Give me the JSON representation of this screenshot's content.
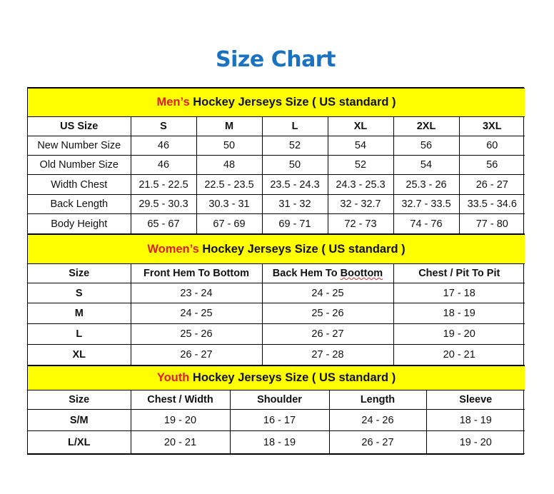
{
  "title": "Size Chart",
  "colors": {
    "title": "#1a72c0",
    "banner": "#ffff00",
    "highlight": "#e0201a"
  },
  "sections": [
    {
      "key": "men",
      "lead": "Men’s",
      "rest": " Hockey Jerseys Size ( US standard )",
      "headers": [
        "US Size",
        "S",
        "M",
        "L",
        "XL",
        "2XL",
        "3XL"
      ],
      "rows": [
        [
          "New Number Size",
          "46",
          "50",
          "52",
          "54",
          "56",
          "60"
        ],
        [
          "Old Number Size",
          "46",
          "48",
          "50",
          "52",
          "54",
          "56"
        ],
        [
          "Width Chest",
          "21.5 - 22.5",
          "22.5 - 23.5",
          "23.5 - 24.3",
          "24.3 - 25.3",
          "25.3 - 26",
          "26 - 27"
        ],
        [
          "Back Length",
          "29.5 - 30.3",
          "30.3 - 31",
          "31 - 32",
          "32 - 32.7",
          "32.7 - 33.5",
          "33.5 - 34.6"
        ],
        [
          "Body Height",
          "65 - 67",
          "67 - 69",
          "69 - 71",
          "72 - 73",
          "74 - 76",
          "77 - 80"
        ]
      ]
    },
    {
      "key": "women",
      "lead": "Women’s",
      "rest": " Hockey Jerseys Size ( US standard )",
      "headers": [
        "Size",
        "Front Hem To Bottom",
        "Back Hem To Boottom",
        "Chest / Pit To Pit"
      ],
      "rows": [
        [
          "S",
          "23 - 24",
          "24 - 25",
          "17 - 18"
        ],
        [
          "M",
          "24 - 25",
          "25 - 26",
          "18 - 19"
        ],
        [
          "L",
          "25 - 26",
          "26 - 27",
          "19 - 20"
        ],
        [
          "XL",
          "26 - 27",
          "27 - 28",
          "20 - 21"
        ]
      ]
    },
    {
      "key": "youth",
      "lead": "Youth",
      "rest": " Hockey Jerseys Size ( US standard )",
      "headers": [
        "Size",
        "Chest / Width",
        "Shoulder",
        "Length",
        "Sleeve"
      ],
      "rows": [
        [
          "S/M",
          "19 - 20",
          "16 - 17",
          "24 - 26",
          "18 - 19"
        ],
        [
          "L/XL",
          "20 - 21",
          "18 - 19",
          "26 - 27",
          "19 - 20"
        ]
      ]
    }
  ]
}
